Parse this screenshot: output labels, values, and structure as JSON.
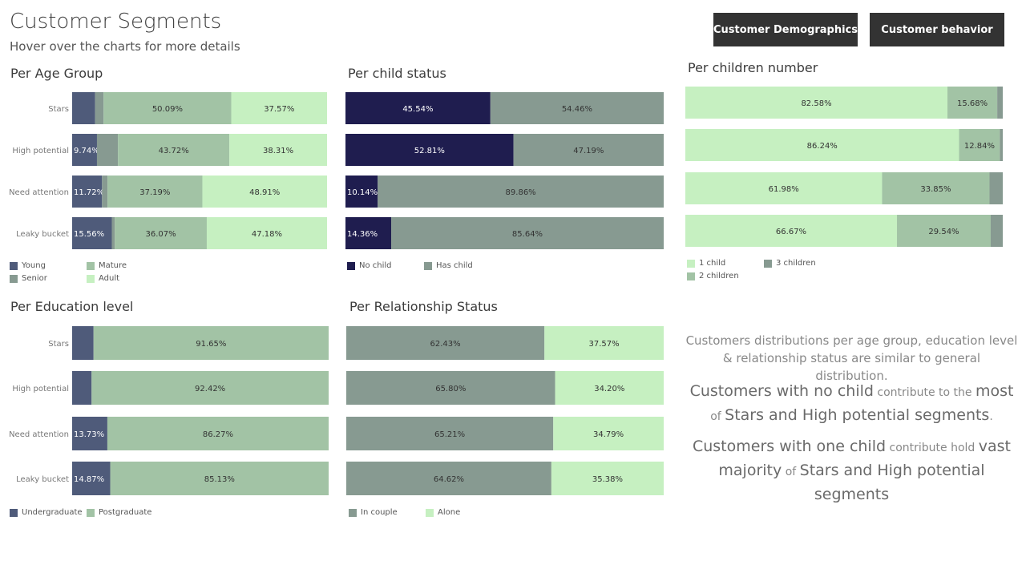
{
  "header": {
    "title": "Customer Segments",
    "subtitle": "Hover over the charts for more details",
    "buttons": [
      "Customer Demographics",
      "Customer behavior"
    ]
  },
  "colors": {
    "young": "#4f5b7a",
    "senior": "#879a91",
    "mature": "#a2c3a5",
    "adult": "#c6f0c1",
    "no_child": "#1f1d4f",
    "has_child": "#879a91",
    "undergraduate": "#4f5b7a",
    "postgraduate": "#a2c3a5",
    "in_couple": "#879a91",
    "alone": "#c6f0c1",
    "one_child": "#c6f0c1",
    "two_children": "#a2c3a5",
    "three_children": "#879a91"
  },
  "chart_data": [
    {
      "id": "age",
      "type": "bar",
      "stacked": "100%",
      "orientation": "horizontal",
      "title": "Per Age Group",
      "categories": [
        "Stars",
        "High potential",
        "Need attention",
        "Leaky bucket"
      ],
      "series": [
        {
          "name": "Young",
          "color": "#4f5b7a",
          "values": [
            9.0,
            9.74,
            11.72,
            15.56
          ],
          "labels": [
            "",
            "9.74%",
            "11.72%",
            "15.56%"
          ]
        },
        {
          "name": "Senior",
          "color": "#879a91",
          "values": [
            3.34,
            8.23,
            2.18,
            1.19
          ],
          "labels": [
            "",
            "",
            "",
            ""
          ]
        },
        {
          "name": "Mature",
          "color": "#a2c3a5",
          "values": [
            50.09,
            43.72,
            37.19,
            36.07
          ],
          "labels": [
            "50.09%",
            "43.72%",
            "37.19%",
            "36.07%"
          ]
        },
        {
          "name": "Adult",
          "color": "#c6f0c1",
          "values": [
            37.57,
            38.31,
            48.91,
            47.18
          ],
          "labels": [
            "37.57%",
            "38.31%",
            "48.91%",
            "47.18%"
          ]
        }
      ],
      "legend": [
        {
          "name": "Young",
          "color": "#4f5b7a"
        },
        {
          "name": "Mature",
          "color": "#a2c3a5"
        },
        {
          "name": "Senior",
          "color": "#879a91"
        },
        {
          "name": "Adult",
          "color": "#c6f0c1"
        }
      ],
      "xlim": [
        0,
        100
      ]
    },
    {
      "id": "child",
      "type": "bar",
      "stacked": "100%",
      "orientation": "horizontal",
      "title": "Per child status",
      "categories": [
        "Stars",
        "High potential",
        "Need attention",
        "Leaky bucket"
      ],
      "series": [
        {
          "name": "No child",
          "color": "#1f1d4f",
          "values": [
            45.54,
            52.81,
            10.14,
            14.36
          ],
          "labels": [
            "45.54%",
            "52.81%",
            "10.14%",
            "14.36%"
          ]
        },
        {
          "name": "Has child",
          "color": "#879a91",
          "values": [
            54.46,
            47.19,
            89.86,
            85.64
          ],
          "labels": [
            "54.46%",
            "47.19%",
            "89.86%",
            "85.64%"
          ]
        }
      ],
      "legend": [
        {
          "name": "No child",
          "color": "#1f1d4f"
        },
        {
          "name": "Has child",
          "color": "#879a91"
        }
      ],
      "xlim": [
        0,
        100
      ]
    },
    {
      "id": "children",
      "type": "bar",
      "stacked": "100%",
      "orientation": "horizontal",
      "title": "Per children number",
      "categories": [
        "Stars",
        "High potential",
        "Need attention",
        "Leaky bucket"
      ],
      "series": [
        {
          "name": "1 child",
          "color": "#c6f0c1",
          "values": [
            82.58,
            86.24,
            61.98,
            66.67
          ],
          "labels": [
            "82.58%",
            "86.24%",
            "61.98%",
            "66.67%"
          ]
        },
        {
          "name": "2 children",
          "color": "#a2c3a5",
          "values": [
            15.68,
            12.84,
            33.85,
            29.54
          ],
          "labels": [
            "15.68%",
            "12.84%",
            "33.85%",
            "29.54%"
          ]
        },
        {
          "name": "3 children",
          "color": "#879a91",
          "values": [
            1.74,
            0.92,
            4.17,
            3.79
          ],
          "labels": [
            "",
            "",
            "",
            ""
          ]
        }
      ],
      "legend": [
        {
          "name": "1 child",
          "color": "#c6f0c1"
        },
        {
          "name": "3 children",
          "color": "#879a91"
        },
        {
          "name": "2 children",
          "color": "#a2c3a5"
        }
      ],
      "xlim": [
        0,
        100
      ]
    },
    {
      "id": "education",
      "type": "bar",
      "stacked": "100%",
      "orientation": "horizontal",
      "title": "Per Education level",
      "categories": [
        "Stars",
        "High potential",
        "Need attention",
        "Leaky bucket"
      ],
      "series": [
        {
          "name": "Undergraduate",
          "color": "#4f5b7a",
          "values": [
            8.35,
            7.58,
            13.73,
            14.87
          ],
          "labels": [
            "",
            "",
            "13.73%",
            "14.87%"
          ]
        },
        {
          "name": "Postgraduate",
          "color": "#a2c3a5",
          "values": [
            91.65,
            92.42,
            86.27,
            85.13
          ],
          "labels": [
            "91.65%",
            "92.42%",
            "86.27%",
            "85.13%"
          ]
        }
      ],
      "legend": [
        {
          "name": "Undergraduate",
          "color": "#4f5b7a"
        },
        {
          "name": "Postgraduate",
          "color": "#a2c3a5"
        }
      ],
      "xlim": [
        0,
        100
      ]
    },
    {
      "id": "relationship",
      "type": "bar",
      "stacked": "100%",
      "orientation": "horizontal",
      "title": "Per Relationship Status",
      "categories": [
        "Stars",
        "High potential",
        "Need attention",
        "Leaky bucket"
      ],
      "series": [
        {
          "name": "In couple",
          "color": "#879a91",
          "values": [
            62.43,
            65.8,
            65.21,
            64.62
          ],
          "labels": [
            "62.43%",
            "65.80%",
            "65.21%",
            "64.62%"
          ]
        },
        {
          "name": "Alone",
          "color": "#c6f0c1",
          "values": [
            37.57,
            34.2,
            34.79,
            35.38
          ],
          "labels": [
            "37.57%",
            "34.20%",
            "34.79%",
            "35.38%"
          ]
        }
      ],
      "legend": [
        {
          "name": "In couple",
          "color": "#879a91"
        },
        {
          "name": "Alone",
          "color": "#c6f0c1"
        }
      ],
      "xlim": [
        0,
        100
      ]
    }
  ],
  "insights": {
    "p1": "Customers distributions per age group, education level & relationship status are similar to general distribution.",
    "p2": {
      "a": "Customers with no child",
      "b": " contribute to the ",
      "c": "most",
      "d": " of ",
      "e": "Stars and High potential segments",
      "f": "."
    },
    "p3": {
      "a": "Customers with one child",
      "b": " contribute hold ",
      "c": "vast majority",
      "d": "  of ",
      "e": "Stars and High potential segments"
    }
  }
}
